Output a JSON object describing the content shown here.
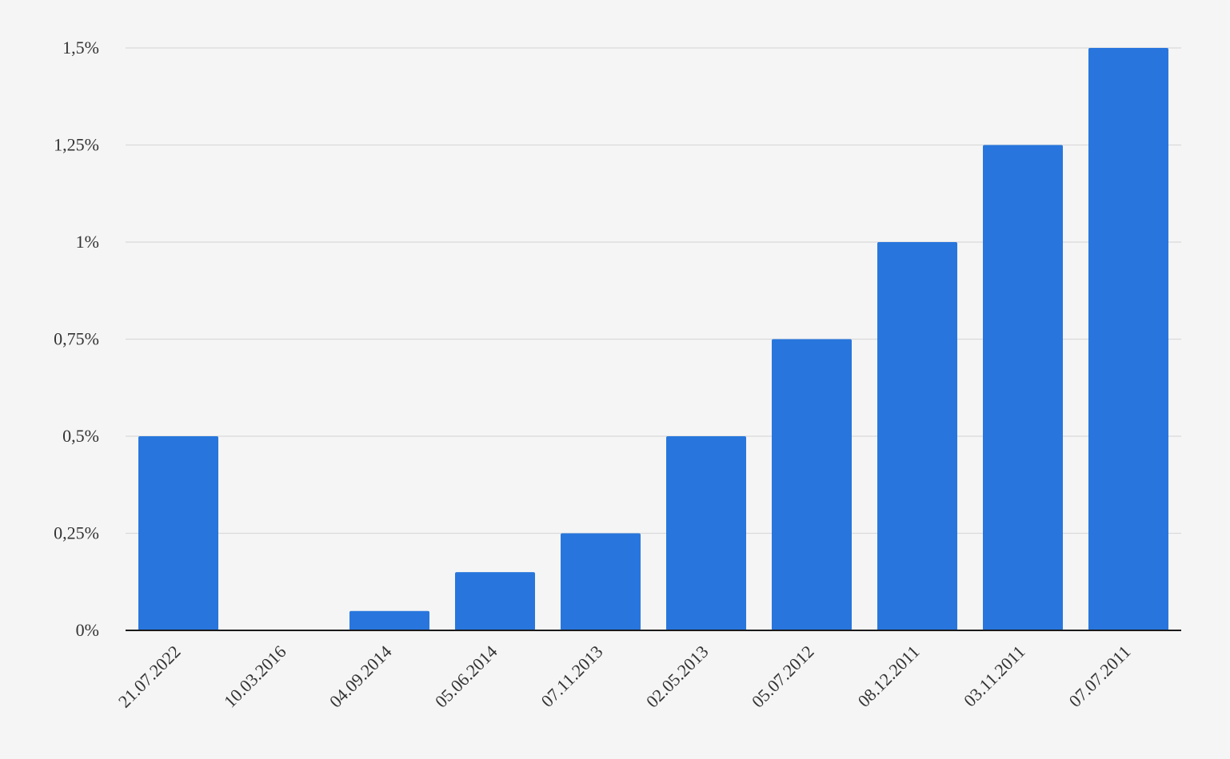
{
  "chart_data": {
    "type": "bar",
    "title": "",
    "xlabel": "",
    "ylabel": "",
    "categories": [
      "21.07.2022",
      "10.03.2016",
      "04.09.2014",
      "05.06.2014",
      "07.11.2013",
      "02.05.2013",
      "05.07.2012",
      "08.12.2011",
      "03.11.2011",
      "07.07.2011"
    ],
    "values": [
      0.5,
      0,
      0.05,
      0.15,
      0.25,
      0.5,
      0.75,
      1.0,
      1.25,
      1.5
    ],
    "ylim": [
      0,
      1.5
    ],
    "yticks": [
      0,
      0.25,
      0.5,
      0.75,
      1,
      1.25,
      1.5
    ],
    "ytick_labels": [
      "0%",
      "0,25%",
      "0,5%",
      "0,75%",
      "1%",
      "1,25%",
      "1,5%"
    ],
    "grid": true,
    "legend": "none",
    "colors": {
      "bar": "#2876dd",
      "background": "#f5f5f5",
      "grid": "#d9d9d9",
      "axis": "#1a1a1a"
    }
  }
}
